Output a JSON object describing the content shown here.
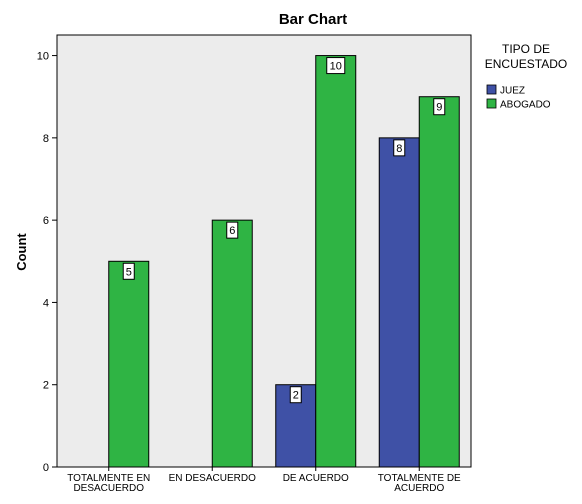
{
  "chart_data": {
    "type": "bar",
    "title": "Bar Chart",
    "xlabel": "",
    "ylabel": "Count",
    "ylim": [
      0,
      10.5
    ],
    "yticks": [
      0,
      2,
      4,
      6,
      8,
      10
    ],
    "grid": false,
    "legend": {
      "title_lines": [
        "TIPO DE",
        "ENCUESTADO"
      ],
      "placement": "right"
    },
    "categories": [
      [
        "TOTALMENTE EN",
        "DESACUERDO"
      ],
      [
        "EN DESACUERDO"
      ],
      [
        "DE ACUERDO"
      ],
      [
        "TOTALMENTE DE",
        "ACUERDO"
      ]
    ],
    "series": [
      {
        "name": "JUEZ",
        "color": "#3f51a6",
        "values": [
          0,
          0,
          2,
          8
        ]
      },
      {
        "name": "ABOGADO",
        "color": "#2fb444",
        "values": [
          5,
          6,
          10,
          9
        ]
      }
    ],
    "colors": {
      "plot_background": "#ececec",
      "page_background": "#ffffff"
    }
  }
}
